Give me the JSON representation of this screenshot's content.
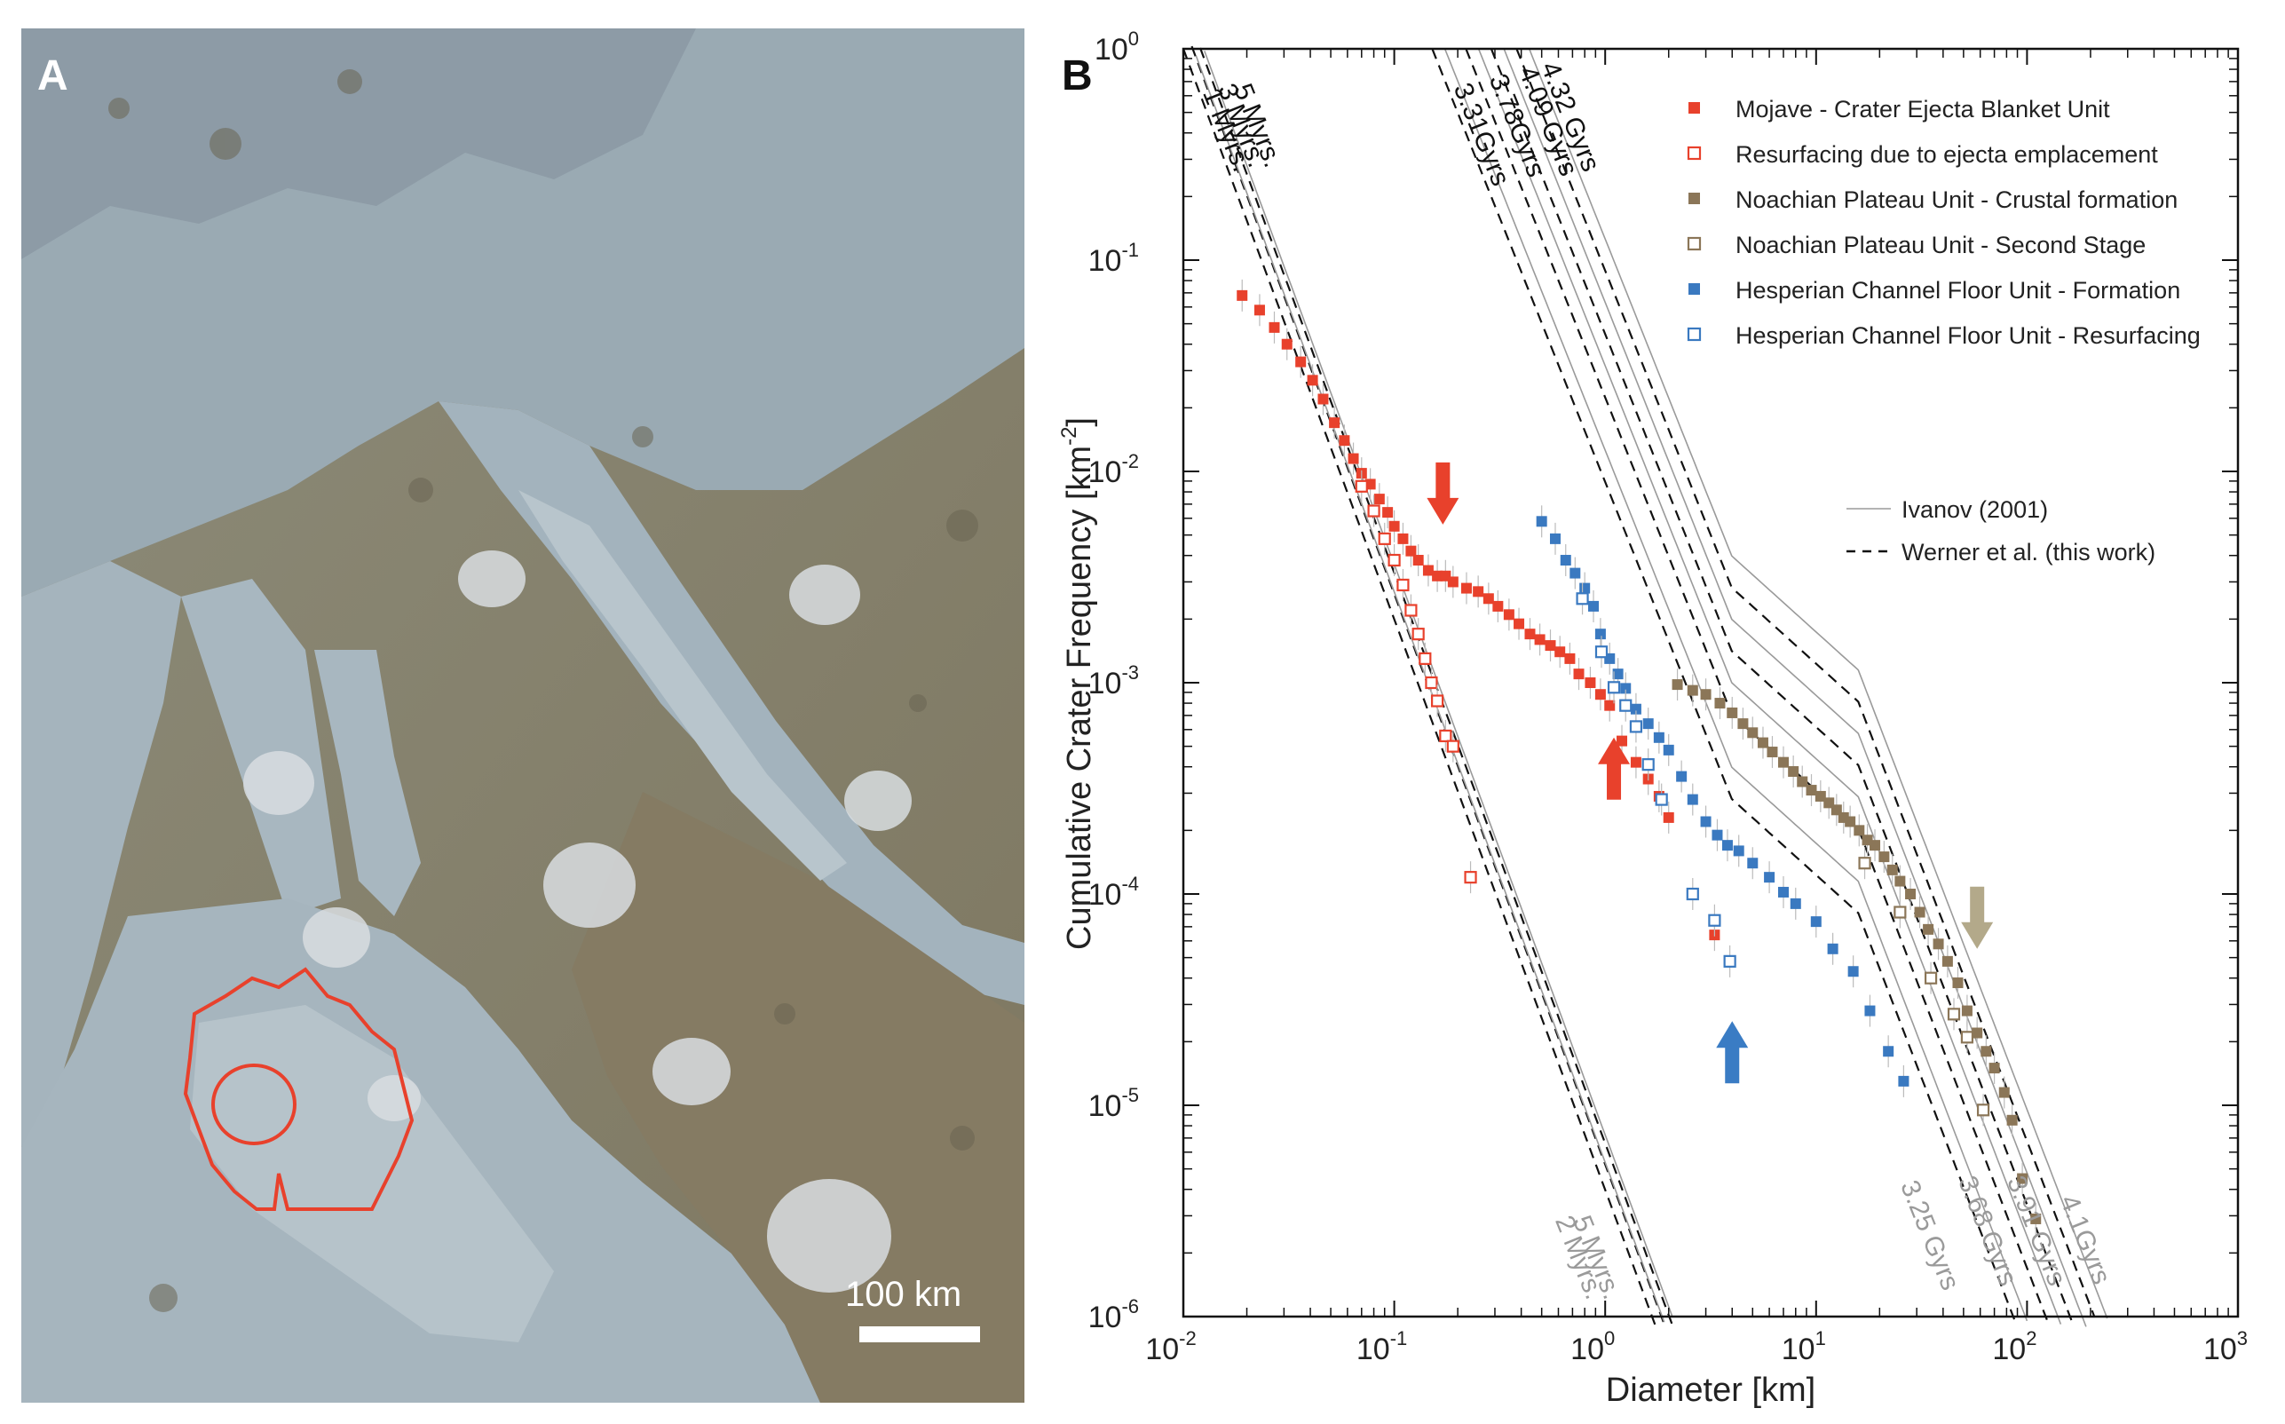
{
  "panel_a": {
    "letter": "A",
    "scale_label": "100 km"
  },
  "panel_b": {
    "letter": "B"
  },
  "colors": {
    "mojave": "#e8412c",
    "noachian": "#8b7658",
    "hesperian": "#3a79c0",
    "arrow_red": "#e8412c",
    "arrow_tan": "#b3a98a",
    "arrow_blue": "#3a7cc4",
    "isochron_grey": "#9a9a9a",
    "isochron_dark": "#111111"
  },
  "chart_data": {
    "type": "scatter",
    "xlabel": "Diameter [km]",
    "ylabel": "Cumulative Crater Frequency [km",
    "ylabel_sup": "-2",
    "ylabel_end": "]",
    "xscale": "log",
    "yscale": "log",
    "xlim": [
      0.01,
      1000
    ],
    "ylim": [
      1e-06,
      1
    ],
    "x_ticks": [
      {
        "value": 0.01,
        "base": "10",
        "exp": "-2"
      },
      {
        "value": 0.1,
        "base": "10",
        "exp": "-1"
      },
      {
        "value": 1,
        "base": "10",
        "exp": "0"
      },
      {
        "value": 10,
        "base": "10",
        "exp": "1"
      },
      {
        "value": 100,
        "base": "10",
        "exp": "2"
      },
      {
        "value": 1000,
        "base": "10",
        "exp": "3"
      }
    ],
    "y_ticks": [
      {
        "value": 1,
        "base": "10",
        "exp": "0"
      },
      {
        "value": 0.1,
        "base": "10",
        "exp": "-1"
      },
      {
        "value": 0.01,
        "base": "10",
        "exp": "-2"
      },
      {
        "value": 0.001,
        "base": "10",
        "exp": "-3"
      },
      {
        "value": 0.0001,
        "base": "10",
        "exp": "-4"
      },
      {
        "value": 1e-05,
        "base": "10",
        "exp": "-5"
      },
      {
        "value": 1e-06,
        "base": "10",
        "exp": "-6"
      }
    ],
    "legend_placement": "top-right",
    "series": [
      {
        "name": "Mojave - Crater Ejecta Blanket Unit",
        "marker": "filled",
        "color": "#e8412c",
        "x": [
          0.019,
          0.023,
          0.027,
          0.031,
          0.036,
          0.041,
          0.046,
          0.052,
          0.058,
          0.064,
          0.07,
          0.077,
          0.085,
          0.093,
          0.1,
          0.11,
          0.12,
          0.13,
          0.145,
          0.16,
          0.175,
          0.19,
          0.22,
          0.25,
          0.28,
          0.31,
          0.35,
          0.39,
          0.44,
          0.49,
          0.55,
          0.61,
          0.68,
          0.75,
          0.85,
          0.95,
          1.05,
          1.2,
          1.4,
          1.6,
          1.8,
          2.0,
          3.3
        ],
        "y": [
          0.068,
          0.058,
          0.048,
          0.04,
          0.033,
          0.027,
          0.022,
          0.017,
          0.014,
          0.0115,
          0.0098,
          0.0087,
          0.0074,
          0.0064,
          0.0055,
          0.0048,
          0.0042,
          0.0038,
          0.0034,
          0.0032,
          0.0032,
          0.003,
          0.0028,
          0.0027,
          0.0025,
          0.0023,
          0.0021,
          0.0019,
          0.0017,
          0.0016,
          0.0015,
          0.0014,
          0.0013,
          0.0011,
          0.001,
          0.00088,
          0.00078,
          0.00053,
          0.00042,
          0.00035,
          0.00029,
          0.00023,
          6.4e-05
        ]
      },
      {
        "name": "Resurfacing due to ejecta emplacement",
        "marker": "open",
        "color": "#e8412c",
        "x": [
          0.07,
          0.08,
          0.09,
          0.1,
          0.11,
          0.12,
          0.13,
          0.14,
          0.15,
          0.16,
          0.175,
          0.19,
          0.23
        ],
        "y": [
          0.0085,
          0.0065,
          0.0048,
          0.0038,
          0.0029,
          0.0022,
          0.0017,
          0.0013,
          0.001,
          0.00082,
          0.00056,
          0.0005,
          0.00012
        ]
      },
      {
        "name": "Noachian Plateau Unit - Crustal formation",
        "marker": "filled",
        "color": "#8b7658",
        "x": [
          2.2,
          2.6,
          3.0,
          3.5,
          4.0,
          4.5,
          5.0,
          5.6,
          6.2,
          7.0,
          7.8,
          8.6,
          9.5,
          10.5,
          11.5,
          12.5,
          13.5,
          14.5,
          16,
          17.5,
          19,
          21,
          23,
          25,
          28,
          31,
          34,
          38,
          42,
          47,
          52,
          58,
          64,
          70,
          78,
          85,
          95,
          110
        ],
        "y": [
          0.00098,
          0.00092,
          0.00088,
          0.0008,
          0.00072,
          0.00064,
          0.00058,
          0.00052,
          0.00047,
          0.00042,
          0.00038,
          0.00034,
          0.00031,
          0.00029,
          0.00027,
          0.00025,
          0.00023,
          0.00022,
          0.0002,
          0.00018,
          0.00017,
          0.00015,
          0.00013,
          0.000115,
          0.0001,
          8.2e-05,
          6.8e-05,
          5.8e-05,
          4.8e-05,
          3.8e-05,
          2.8e-05,
          2.2e-05,
          1.8e-05,
          1.5e-05,
          1.15e-05,
          8.5e-06,
          4.5e-06,
          2.9e-06
        ]
      },
      {
        "name": "Noachian Plateau Unit - Second Stage",
        "marker": "open",
        "color": "#8b7658",
        "x": [
          17,
          25,
          35,
          45,
          52,
          62
        ],
        "y": [
          0.00014,
          8.2e-05,
          4e-05,
          2.7e-05,
          2.1e-05,
          9.5e-06
        ]
      },
      {
        "name": "Hesperian Channel Floor Unit - Formation",
        "marker": "filled",
        "color": "#3a79c0",
        "x": [
          0.5,
          0.58,
          0.65,
          0.72,
          0.8,
          0.88,
          0.95,
          1.05,
          1.15,
          1.25,
          1.4,
          1.6,
          1.8,
          2.0,
          2.3,
          2.6,
          3.0,
          3.4,
          3.8,
          4.3,
          5.0,
          6.0,
          7.0,
          8.0,
          10,
          12,
          15,
          18,
          22,
          26
        ],
        "y": [
          0.0058,
          0.0048,
          0.0038,
          0.0033,
          0.0028,
          0.0023,
          0.0017,
          0.0013,
          0.0011,
          0.00094,
          0.00075,
          0.00064,
          0.00055,
          0.00048,
          0.00036,
          0.00028,
          0.00022,
          0.00019,
          0.00017,
          0.00016,
          0.00014,
          0.00012,
          0.000102,
          9e-05,
          7.4e-05,
          5.5e-05,
          4.3e-05,
          2.8e-05,
          1.8e-05,
          1.3e-05
        ]
      },
      {
        "name": "Hesperian Channel Floor Unit - Resurfacing",
        "marker": "open",
        "color": "#3a79c0",
        "x": [
          0.78,
          0.96,
          1.1,
          1.25,
          1.4,
          1.6,
          1.85,
          2.6,
          3.3,
          3.9
        ],
        "y": [
          0.0025,
          0.0014,
          0.00095,
          0.00078,
          0.00062,
          0.00041,
          0.00028,
          0.0001,
          7.5e-05,
          4.8e-05
        ]
      }
    ],
    "model_legend": [
      {
        "label": "Ivanov (2001)",
        "style": "solid"
      },
      {
        "label": "Werner et al. (this work)",
        "style": "dashed"
      }
    ],
    "isochron_labels_top": [
      "5 Myrs.",
      "3 Myrs.",
      "1 Myrs.",
      "3.31Gyrs",
      "3.78Gyrs",
      "4.09 Gyrs",
      "4.32 Gyrs"
    ],
    "isochron_labels_bottom": [
      "5 Myrs.",
      "2 Myrs.",
      "3.25 Gyrs",
      "3.68 Gyrs",
      "3.91 Gyrs",
      "4.1Gyrs"
    ],
    "arrows": [
      {
        "color": "arrow_red",
        "direction": "down",
        "x": 0.17,
        "y": 0.0056
      },
      {
        "color": "arrow_red",
        "direction": "up",
        "x": 1.1,
        "y": 0.00055
      },
      {
        "color": "arrow_blue",
        "direction": "up",
        "x": 4.0,
        "y": 2.5e-05
      },
      {
        "color": "arrow_tan",
        "direction": "down",
        "x": 58,
        "y": 5.5e-05
      }
    ]
  }
}
